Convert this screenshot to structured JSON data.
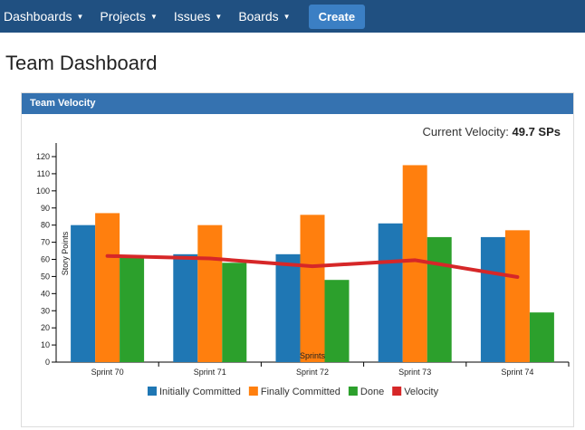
{
  "nav": {
    "items": [
      "Dashboards",
      "Projects",
      "Issues",
      "Boards"
    ],
    "create": "Create"
  },
  "page_title": "Team Dashboard",
  "panel": {
    "title": "Team Velocity",
    "velocity_label": "Current Velocity:",
    "velocity_value": "49.7 SPs"
  },
  "chart_data": {
    "type": "bar",
    "categories": [
      "Sprint 70",
      "Sprint 71",
      "Sprint 72",
      "Sprint 73",
      "Sprint 74"
    ],
    "series": [
      {
        "name": "Initially Committed",
        "type": "bar",
        "color": "#1f77b4",
        "values": [
          80,
          63,
          63,
          81,
          73
        ]
      },
      {
        "name": "Finally Committed",
        "type": "bar",
        "color": "#ff7f0e",
        "values": [
          87,
          80,
          86,
          115,
          77
        ]
      },
      {
        "name": "Done",
        "type": "bar",
        "color": "#2ca02c",
        "values": [
          61,
          58,
          48,
          73,
          29
        ]
      },
      {
        "name": "Velocity",
        "type": "line",
        "color": "#d62728",
        "values": [
          62,
          60.5,
          56,
          59.5,
          49.7
        ]
      }
    ],
    "xlabel": "Sprints",
    "ylabel": "Story Points",
    "ylim": [
      0,
      125
    ],
    "yticks": [
      0,
      10,
      20,
      30,
      40,
      50,
      60,
      70,
      80,
      90,
      100,
      110,
      120
    ],
    "legend": "bottom",
    "grid": false
  }
}
